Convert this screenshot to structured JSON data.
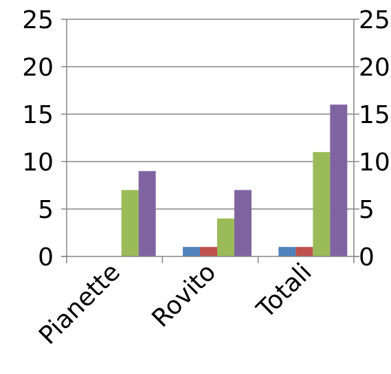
{
  "chart_data": {
    "type": "bar",
    "categories": [
      "Pianette",
      "Rovito",
      "Totali"
    ],
    "series": [
      {
        "color": "#4f81bd",
        "values": [
          0,
          1,
          1
        ]
      },
      {
        "color": "#c0504d",
        "values": [
          0,
          1,
          1
        ]
      },
      {
        "color": "#9bbb59",
        "values": [
          7,
          4,
          11
        ]
      },
      {
        "color": "#8064a2",
        "values": [
          9,
          7,
          16
        ]
      }
    ],
    "ylim": [
      0,
      25
    ],
    "yticks": [
      0,
      5,
      10,
      15,
      20,
      25
    ],
    "y_axes": [
      "left",
      "right"
    ],
    "grid": true,
    "legend": "none"
  }
}
